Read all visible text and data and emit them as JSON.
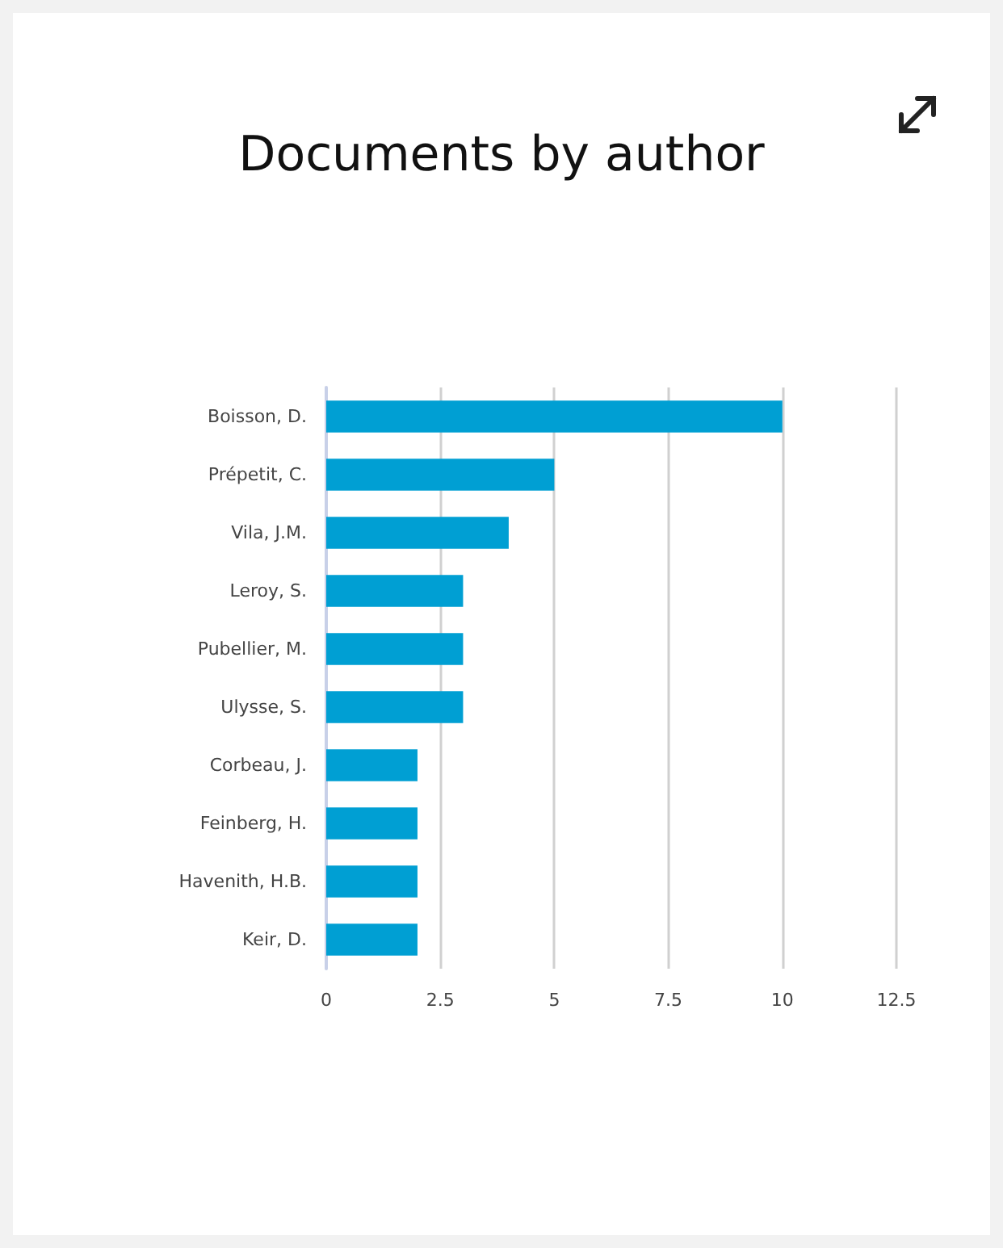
{
  "chart_data": {
    "type": "bar",
    "orientation": "horizontal",
    "title": "Documents by author",
    "categories": [
      "Boisson, D.",
      "Prépetit, C.",
      "Vila, J.M.",
      "Leroy, S.",
      "Pubellier, M.",
      "Ulysse, S.",
      "Corbeau, J.",
      "Feinberg, H.",
      "Havenith, H.B.",
      "Keir, D."
    ],
    "values": [
      10,
      5,
      4,
      3,
      3,
      3,
      2,
      2,
      2,
      2
    ],
    "color": "#009fd3",
    "xlim": [
      0,
      12.5
    ],
    "xticks": [
      0,
      2.5,
      5,
      7.5,
      10,
      12.5
    ],
    "grid": "x"
  }
}
